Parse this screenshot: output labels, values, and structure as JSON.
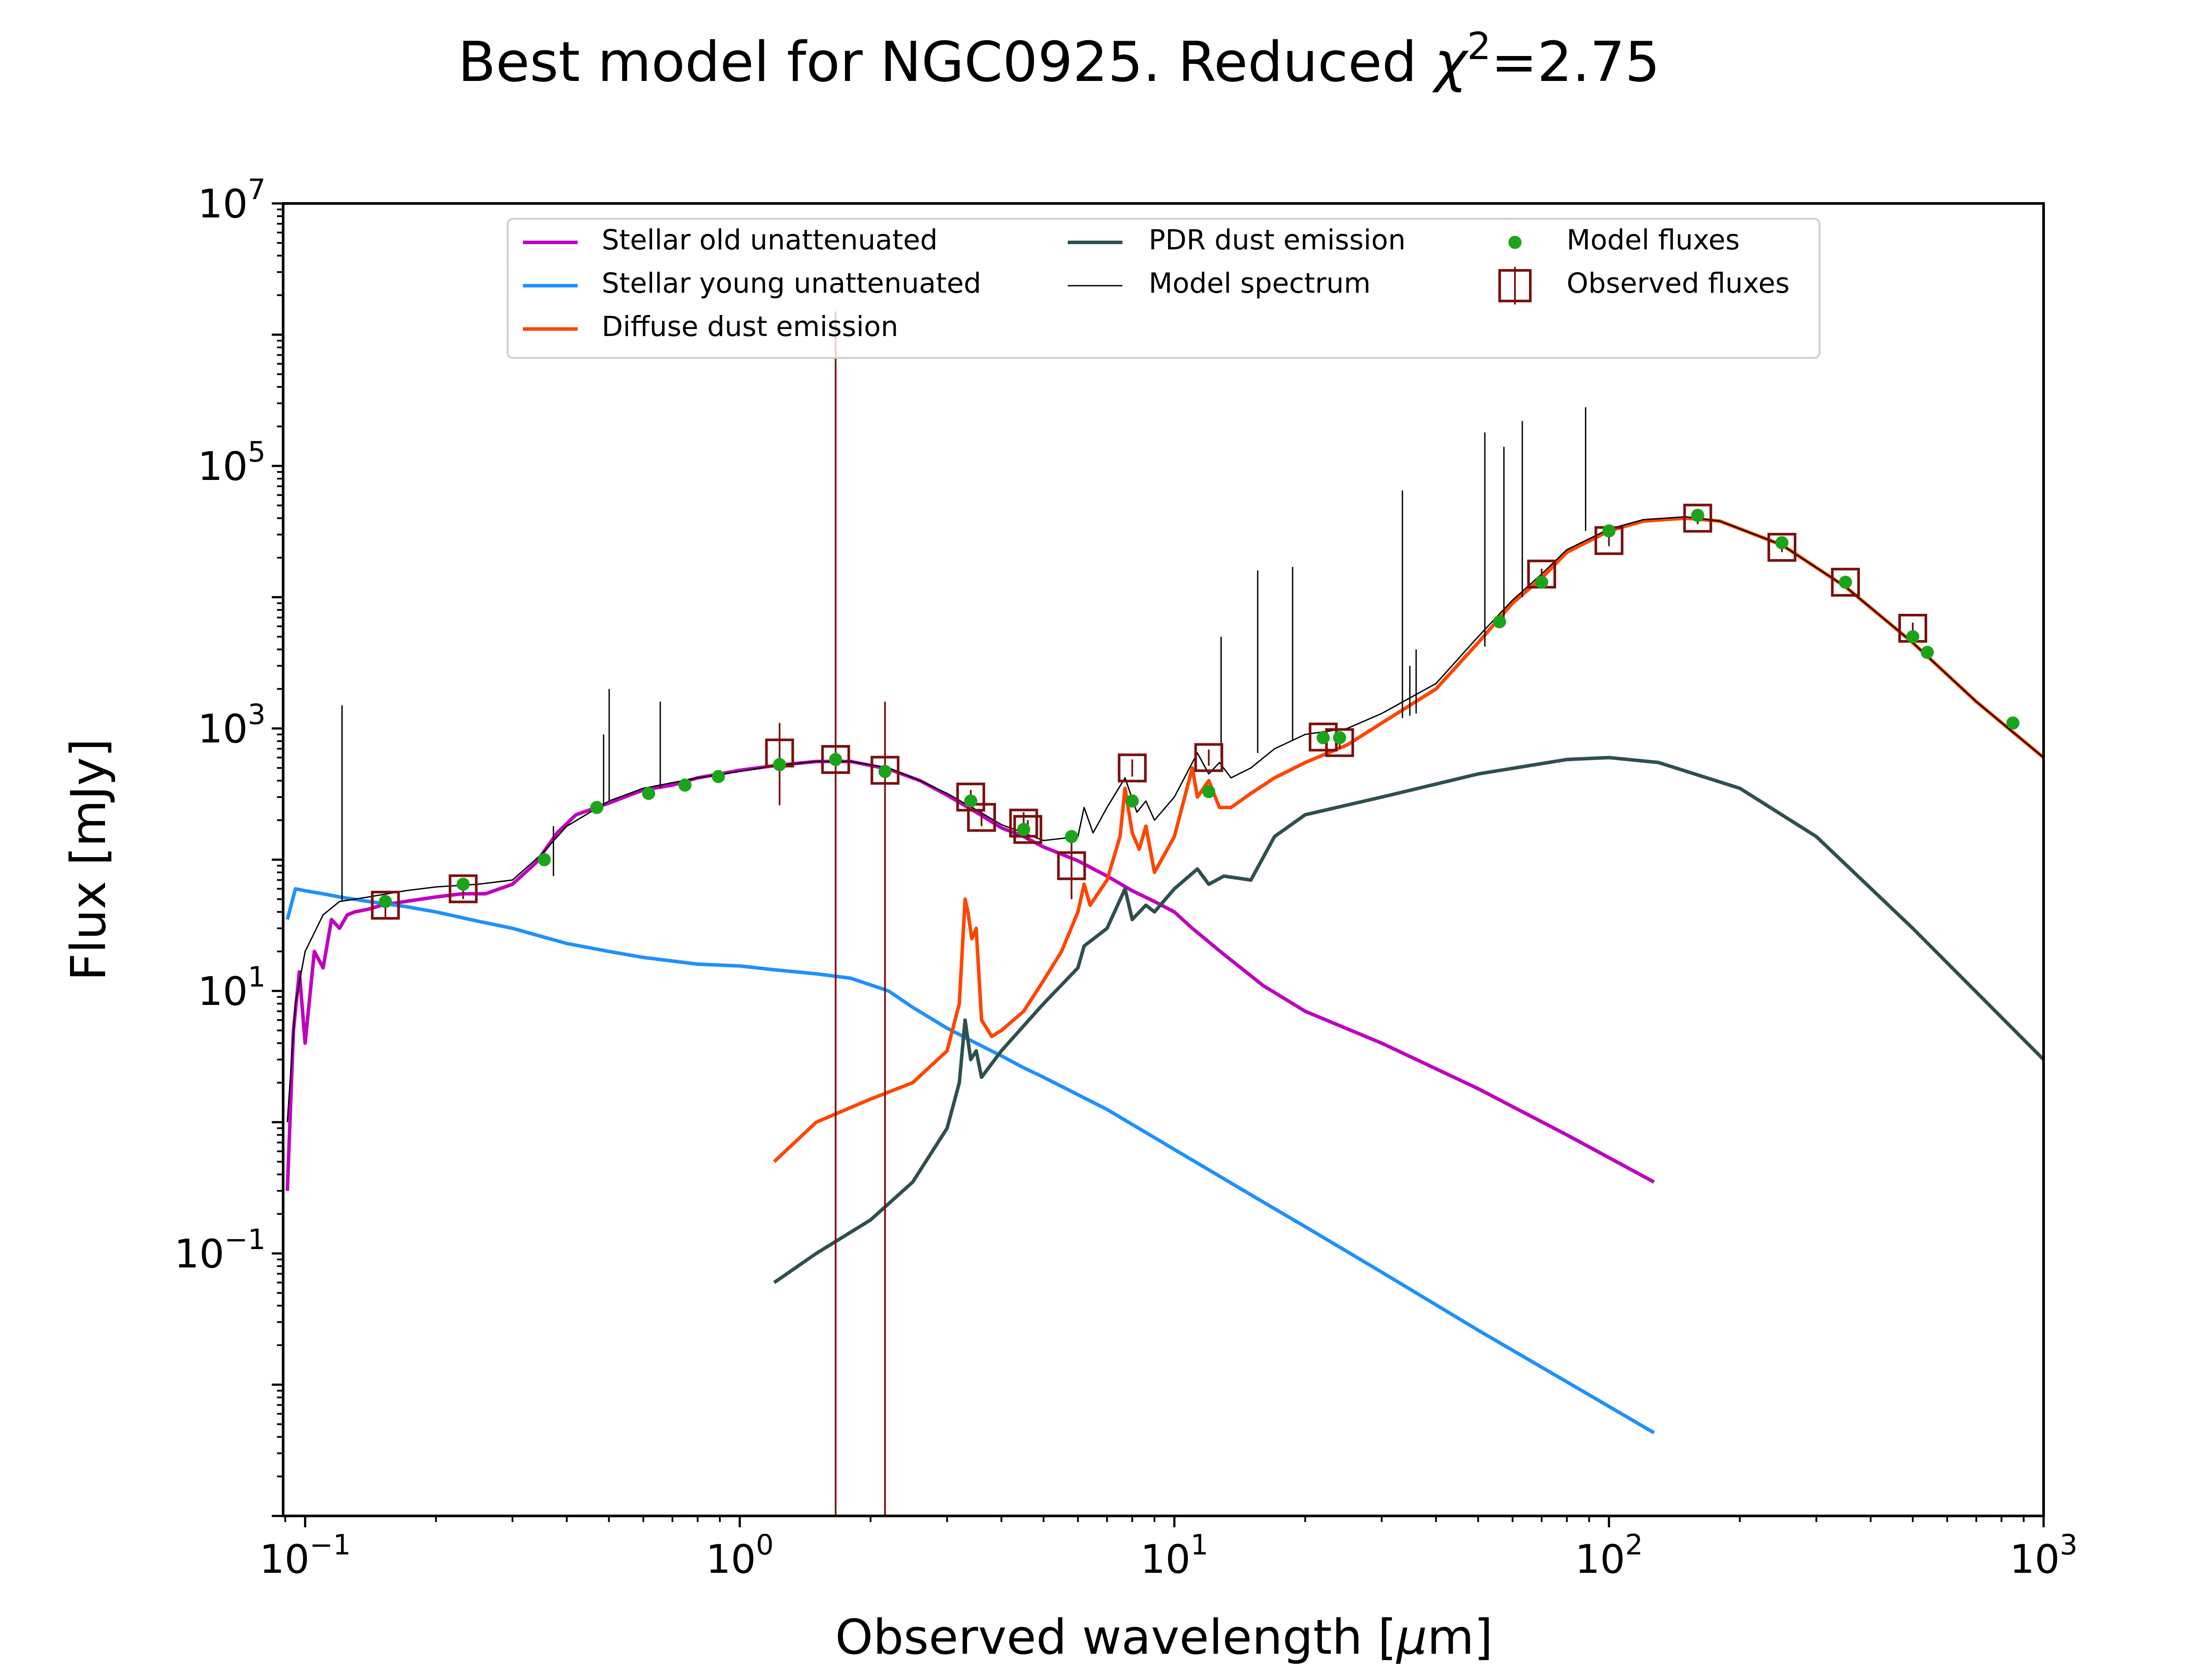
{
  "chart_data": {
    "type": "line",
    "title": {
      "prefix": "Best model for NGC0925. Reduced ",
      "chi": "χ",
      "sup": "2",
      "suffix": "=2.75"
    },
    "xlabel": {
      "prefix": "Observed wavelength [",
      "mu": "μ",
      "suffix": "m]"
    },
    "ylabel": "Flux [mJy]",
    "xscale": "log",
    "yscale": "log",
    "xlim": [
      0.089,
      1000
    ],
    "ylim": [
      0.001,
      10000000
    ],
    "x_ticks": [
      {
        "value": 0.1,
        "base": "10",
        "exp": "−1"
      },
      {
        "value": 1,
        "base": "10",
        "exp": "0"
      },
      {
        "value": 10,
        "base": "10",
        "exp": "1"
      },
      {
        "value": 100,
        "base": "10",
        "exp": "2"
      },
      {
        "value": 1000,
        "base": "10",
        "exp": "3"
      }
    ],
    "y_ticks": [
      {
        "value": 0.1,
        "base": "10",
        "exp": "−1"
      },
      {
        "value": 10,
        "base": "10",
        "exp": "1"
      },
      {
        "value": 1000,
        "base": "10",
        "exp": "3"
      },
      {
        "value": 100000,
        "base": "10",
        "exp": "5"
      },
      {
        "value": 10000000,
        "base": "10",
        "exp": "7"
      }
    ],
    "legend": {
      "placement": "upper center",
      "entries": [
        {
          "label": "Stellar old unattenuated",
          "kind": "line",
          "color": "#bf00bf"
        },
        {
          "label": "Stellar young unattenuated",
          "kind": "line",
          "color": "#1e90ff"
        },
        {
          "label": "Diffuse dust emission",
          "kind": "line",
          "color": "#ff4500"
        },
        {
          "label": "PDR dust emission",
          "kind": "line",
          "color": "#2f4f4f"
        },
        {
          "label": "Model spectrum",
          "kind": "thinline",
          "color": "#000000"
        },
        {
          "label": "Model fluxes",
          "kind": "dot",
          "color": "#1ba41b"
        },
        {
          "label": "Observed fluxes",
          "kind": "square",
          "color": "#7a1010"
        }
      ]
    },
    "series": [
      {
        "name": "Stellar old unattenuated",
        "color": "#bf00bf",
        "x": [
          0.091,
          0.094,
          0.097,
          0.1,
          0.105,
          0.11,
          0.115,
          0.12,
          0.125,
          0.13,
          0.14,
          0.15,
          0.17,
          0.2,
          0.23,
          0.26,
          0.3,
          0.34,
          0.38,
          0.42,
          0.5,
          0.6,
          0.7,
          0.8,
          0.9,
          1.0,
          1.2,
          1.5,
          1.8,
          2.2,
          2.6,
          3.0,
          3.5,
          4.0,
          4.5,
          5.0,
          6.0,
          7.0,
          8.0,
          9.0,
          10.0,
          11.0,
          13.0,
          16.0,
          20.0,
          30.0,
          50.0,
          80.0,
          127.0
        ],
        "y": [
          0.3,
          5.0,
          14.0,
          4.0,
          20.0,
          15.0,
          35.0,
          30.0,
          38.0,
          40.0,
          42.0,
          45.0,
          48.0,
          52.0,
          55.0,
          55.0,
          65.0,
          95.0,
          160.0,
          220.0,
          270.0,
          340.0,
          370.0,
          420.0,
          450.0,
          480.0,
          520.0,
          560.0,
          560.0,
          490.0,
          400.0,
          310.0,
          230.0,
          175.0,
          150.0,
          125.0,
          98.0,
          75.0,
          58.0,
          48.0,
          40.0,
          30.0,
          19.0,
          11.0,
          7.0,
          4.0,
          1.8,
          0.8,
          0.35
        ]
      },
      {
        "name": "Stellar young unattenuated",
        "color": "#1e90ff",
        "x": [
          0.091,
          0.095,
          0.1,
          0.11,
          0.12,
          0.14,
          0.17,
          0.2,
          0.25,
          0.3,
          0.35,
          0.4,
          0.5,
          0.6,
          0.8,
          1.0,
          1.2,
          1.5,
          1.8,
          2.2,
          2.5,
          3.0,
          3.5,
          4.0,
          4.5,
          5.0,
          7.0,
          10.0,
          15.0,
          20.0,
          30.0,
          50.0,
          80.0,
          127.0
        ],
        "y": [
          35.0,
          60.0,
          58.0,
          55.0,
          52.0,
          48.0,
          44.0,
          40.0,
          34.0,
          30.0,
          26.0,
          23.0,
          20.0,
          18.0,
          16.0,
          15.5,
          14.5,
          13.5,
          12.5,
          10.0,
          7.5,
          5.2,
          4.0,
          3.2,
          2.6,
          2.2,
          1.25,
          0.62,
          0.28,
          0.16,
          0.072,
          0.026,
          0.0105,
          0.0043
        ]
      },
      {
        "name": "Diffuse dust emission",
        "color": "#ff4500",
        "x": [
          1.2,
          1.5,
          2.0,
          2.5,
          3.0,
          3.2,
          3.3,
          3.35,
          3.42,
          3.5,
          3.6,
          3.8,
          4.0,
          4.5,
          5.0,
          5.5,
          6.0,
          6.2,
          6.4,
          7.0,
          7.5,
          7.7,
          8.0,
          8.3,
          8.6,
          9.0,
          10.0,
          11.0,
          11.3,
          12.0,
          12.7,
          13.5,
          15.0,
          17.0,
          20.0,
          25.0,
          30.0,
          40.0,
          50.0,
          60.0,
          70.0,
          80.0,
          100.0,
          120.0,
          150.0,
          180.0,
          250.0,
          350.0,
          500.0,
          700.0,
          1000.0
        ],
        "y": [
          0.5,
          1.0,
          1.5,
          2.0,
          3.5,
          8.0,
          50.0,
          40.0,
          25.0,
          30.0,
          6.0,
          4.5,
          5.0,
          7.0,
          12.0,
          20.0,
          40.0,
          65.0,
          45.0,
          70.0,
          150.0,
          350.0,
          160.0,
          120.0,
          180.0,
          80.0,
          150.0,
          500.0,
          300.0,
          400.0,
          250.0,
          250.0,
          320.0,
          420.0,
          550.0,
          750.0,
          1100.0,
          2000.0,
          4500.0,
          9000.0,
          14000.0,
          22000.0,
          32000.0,
          38000.0,
          40000.0,
          38000.0,
          25000.0,
          12000.0,
          4500.0,
          1600.0,
          600.0
        ]
      },
      {
        "name": "PDR dust emission",
        "color": "#2f4f4f",
        "x": [
          1.2,
          1.5,
          2.0,
          2.5,
          3.0,
          3.2,
          3.3,
          3.4,
          3.5,
          3.6,
          4.0,
          5.0,
          6.0,
          6.2,
          7.0,
          7.7,
          8.0,
          8.6,
          9.0,
          10.0,
          11.3,
          12.0,
          13.0,
          15.0,
          17.0,
          20.0,
          30.0,
          50.0,
          80.0,
          100.0,
          130.0,
          200.0,
          300.0,
          500.0,
          1000.0
        ],
        "y": [
          0.06,
          0.1,
          0.18,
          0.35,
          0.9,
          2.0,
          6.0,
          3.0,
          3.5,
          2.2,
          3.5,
          8.0,
          15.0,
          22.0,
          30.0,
          60.0,
          35.0,
          45.0,
          40.0,
          60.0,
          85.0,
          65.0,
          75.0,
          70.0,
          150.0,
          220.0,
          300.0,
          450.0,
          580.0,
          600.0,
          550.0,
          350.0,
          150.0,
          30.0,
          3.0
        ]
      },
      {
        "name": "Model spectrum",
        "color": "#000000",
        "x": [
          0.091,
          0.095,
          0.1,
          0.11,
          0.12,
          0.14,
          0.17,
          0.2,
          0.25,
          0.3,
          0.35,
          0.4,
          0.5,
          0.6,
          0.8,
          1.0,
          1.2,
          1.5,
          1.8,
          2.2,
          2.6,
          3.0,
          3.5,
          4.0,
          4.5,
          5.0,
          6.0,
          6.2,
          6.5,
          7.0,
          7.7,
          8.2,
          8.6,
          9.0,
          10.0,
          11.3,
          12.0,
          12.7,
          13.5,
          15.0,
          17.0,
          20.0,
          25.0,
          30.0,
          40.0,
          50.0,
          60.0,
          70.0,
          80.0,
          100.0,
          120.0,
          150.0,
          180.0,
          250.0,
          350.0,
          500.0,
          700.0,
          1000.0
        ],
        "y": [
          1.0,
          8.0,
          20.0,
          38.0,
          48.0,
          52.0,
          58.0,
          62.0,
          65.0,
          70.0,
          110.0,
          180.0,
          280.0,
          350.0,
          420.0,
          470.0,
          520.0,
          560.0,
          560.0,
          500.0,
          400.0,
          320.0,
          240.0,
          185.0,
          160.0,
          140.0,
          150.0,
          250.0,
          160.0,
          250.0,
          420.0,
          230.0,
          280.0,
          200.0,
          300.0,
          650.0,
          450.0,
          550.0,
          420.0,
          500.0,
          700.0,
          900.0,
          1000.0,
          1300.0,
          2200.0,
          5000.0,
          9500.0,
          15000.0,
          23000.0,
          33000.0,
          39000.0,
          41000.0,
          38000.0,
          25000.0,
          12000.0,
          4500.0,
          1600.0,
          600.0
        ]
      }
    ],
    "emission_lines": {
      "name": "Model spectrum lines",
      "color": "#000000",
      "x": [
        0.1216,
        0.3727,
        0.4861,
        0.5007,
        0.6563,
        12.81,
        15.55,
        18.71,
        33.48,
        34.82,
        36.0,
        51.81,
        57.32,
        63.18,
        88.36
      ],
      "base": [
        48.0,
        75.0,
        260.0,
        280.0,
        350.0,
        600.0,
        650.0,
        800.0,
        1200.0,
        1250.0,
        1300.0,
        4200.0,
        6500.0,
        10000.0,
        32000.0
      ],
      "peak": [
        1500.0,
        180.0,
        900.0,
        2000.0,
        1600.0,
        5000.0,
        16000.0,
        17000.0,
        65000.0,
        3000.0,
        4000.0,
        180000.0,
        140000.0,
        220000.0,
        280000.0
      ]
    },
    "model_fluxes": {
      "name": "Model fluxes",
      "color": "#1ba41b",
      "x": [
        0.153,
        0.231,
        0.355,
        0.469,
        0.617,
        0.748,
        0.893,
        1.235,
        1.662,
        2.159,
        3.4,
        4.5,
        5.8,
        8.0,
        12.0,
        22.0,
        24.0,
        56.0,
        70.0,
        100.0,
        160.0,
        250.0,
        350.0,
        500.0,
        540.0,
        850.0
      ],
      "y": [
        48.0,
        65.0,
        100.0,
        250.0,
        320.0,
        370.0,
        430.0,
        530.0,
        580.0,
        470.0,
        280.0,
        170.0,
        150.0,
        280.0,
        330.0,
        850.0,
        850.0,
        6500.0,
        13000.0,
        32000.0,
        42000.0,
        26000.0,
        13000.0,
        5000.0,
        3800.0,
        1100.0
      ]
    },
    "observed_fluxes": {
      "name": "Observed fluxes",
      "color": "#7a1010",
      "x": [
        0.153,
        0.231,
        1.235,
        1.662,
        2.159,
        3.4,
        3.6,
        4.5,
        4.6,
        5.8,
        8.0,
        12.0,
        22.0,
        24.0,
        70.0,
        100.0,
        160.0,
        250.0,
        350.0,
        500.0
      ],
      "y": [
        45.0,
        60.0,
        650.0,
        580.0,
        480.0,
        300.0,
        210.0,
        190.0,
        170.0,
        90.0,
        500.0,
        600.0,
        860.0,
        780.0,
        15000.0,
        27000.0,
        40000.0,
        24000.0,
        13000.0,
        5800.0
      ],
      "yerr_lo": [
        35.0,
        50.0,
        260.0,
        0.001,
        0.001,
        260.0,
        180.0,
        150.0,
        140.0,
        50.0,
        430.0,
        520.0,
        760.0,
        700.0,
        13500.0,
        24500.0,
        36000.0,
        22000.0,
        12000.0,
        5200.0
      ],
      "yerr_hi": [
        55.0,
        70.0,
        1100.0,
        1500000.0,
        1600.0,
        340.0,
        240.0,
        230.0,
        200.0,
        140.0,
        580.0,
        690.0,
        960.0,
        880.0,
        16500.0,
        29500.0,
        44000.0,
        26000.0,
        14000.0,
        6400.0
      ]
    }
  }
}
